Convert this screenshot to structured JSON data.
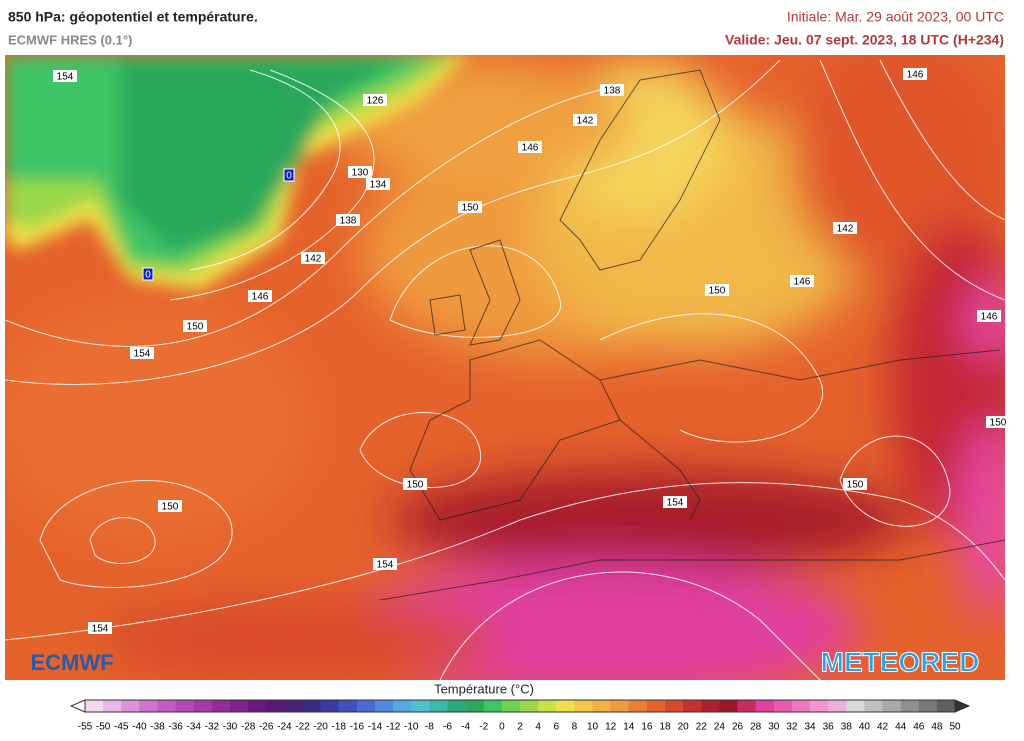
{
  "header": {
    "title": "850 hPa: géopotentiel et température.",
    "subtitle": "ECMWF HRES (0.1°)",
    "initial": "Initiale: Mar. 29 août 2023, 00 UTC",
    "valid": "Valide: Jeu. 07 sept. 2023, 18 UTC (H+234)"
  },
  "map": {
    "contour_labels": [
      154,
      126,
      138,
      142,
      146,
      130,
      134,
      150,
      138,
      142,
      146,
      150,
      154,
      142,
      146,
      150,
      146,
      146,
      150,
      150,
      154,
      150,
      150,
      154,
      154
    ],
    "zero_labels": [
      0,
      0
    ]
  },
  "logos": {
    "left": "ECMWF",
    "right": "METEORED"
  },
  "colorbar": {
    "title": "Température (°C)",
    "labels": [
      -55,
      -50,
      -45,
      -40,
      -38,
      -36,
      -34,
      -32,
      -30,
      -28,
      -26,
      -24,
      -22,
      -20,
      -18,
      -16,
      -14,
      -12,
      -10,
      -8,
      -6,
      -4,
      -2,
      0,
      2,
      4,
      6,
      8,
      10,
      12,
      14,
      16,
      18,
      20,
      22,
      24,
      26,
      28,
      30,
      32,
      34,
      36,
      38,
      40,
      42,
      44,
      46,
      48,
      50
    ]
  }
}
